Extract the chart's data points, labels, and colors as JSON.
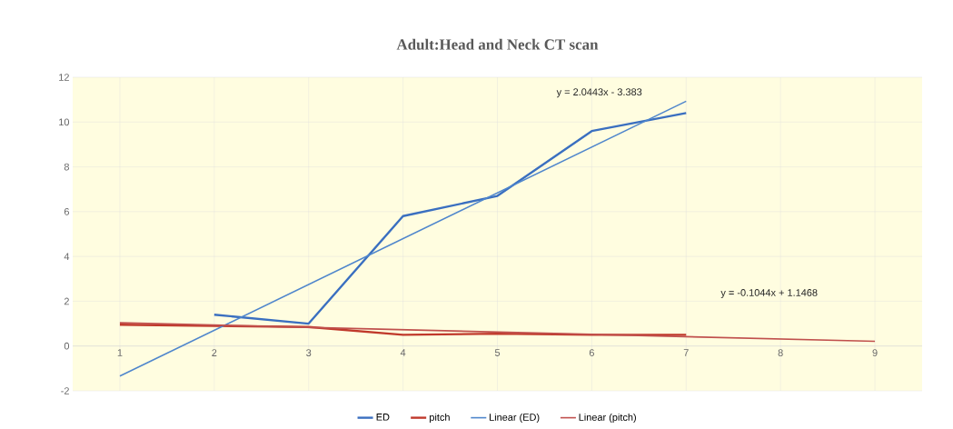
{
  "chart_data": {
    "type": "line",
    "title": "Adult:Head and Neck CT scan",
    "xlim": [
      0.5,
      9.5
    ],
    "xticks": [
      1,
      2,
      3,
      4,
      5,
      6,
      7,
      8,
      9
    ],
    "ylim": [
      -2,
      12
    ],
    "yticks": [
      -2,
      0,
      2,
      4,
      6,
      8,
      10,
      12
    ],
    "grid": true,
    "legend": "bottom",
    "marker": "none",
    "line_style": "solid",
    "series": [
      {
        "name": "ED",
        "color": "#3a6fc0",
        "x": [
          2,
          3,
          4,
          5,
          6,
          7
        ],
        "values": [
          1.4,
          1.0,
          5.8,
          6.7,
          9.6,
          10.4
        ]
      },
      {
        "name": "pitch",
        "color": "#c0392b",
        "x": [
          1,
          2,
          3,
          4,
          5,
          6,
          7
        ],
        "values": [
          0.95,
          0.9,
          0.85,
          0.5,
          0.55,
          0.5,
          0.5
        ]
      },
      {
        "name": "Linear (ED)",
        "color": "#4f86cc",
        "x": [
          1,
          7
        ],
        "values": [
          -1.34,
          10.93
        ]
      },
      {
        "name": "Linear (pitch)",
        "color": "#c0504d",
        "x": [
          1,
          9
        ],
        "values": [
          1.04,
          0.21
        ]
      }
    ],
    "annotations": [
      "y = 2.0443x - 3.383",
      "y = -0.1044x + 1.1468"
    ]
  }
}
